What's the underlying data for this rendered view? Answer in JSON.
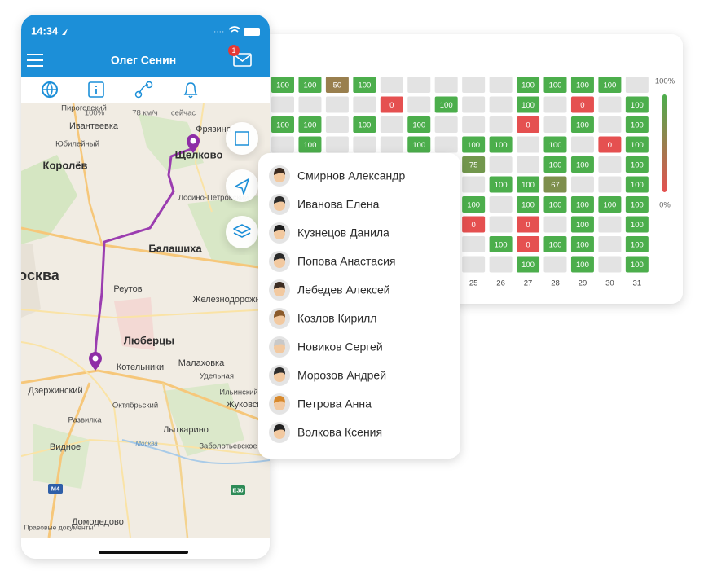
{
  "status_bar": {
    "time": "14:34"
  },
  "header": {
    "title": "Олег Сенин",
    "badge": "1"
  },
  "map": {
    "info": {
      "battery": "100%",
      "speed": "78 км/ч",
      "time": "сейчас"
    },
    "labels": [
      "Пироговский",
      "Ивантеевка",
      "Фрязино",
      "Юбилейный",
      "Королёв",
      "Щелково",
      "Лосино-Петровский",
      "Балашиха",
      "Москва",
      "Реутов",
      "Железнодорожный",
      "Люберцы",
      "Малаховка",
      "Котельники",
      "Удельная",
      "Дзержинский",
      "Ильинский",
      "Жуковский",
      "Октябрьский",
      "Развилка",
      "Лыткарино",
      "Заболотьевское",
      "Москва",
      "Видное",
      "Домодедово"
    ],
    "road_signs": [
      "M4",
      "E30"
    ],
    "legal": "Правовые документы"
  },
  "heatmap": {
    "columns": [
      null,
      null,
      null,
      null,
      null,
      null,
      null,
      25,
      26,
      27,
      28,
      29,
      30,
      31
    ],
    "rows": [
      [
        100,
        100,
        50,
        100,
        null,
        null,
        null,
        null,
        null,
        100,
        100,
        100,
        100,
        null
      ],
      [
        null,
        null,
        null,
        null,
        0,
        null,
        100,
        null,
        null,
        100,
        null,
        0,
        null,
        100
      ],
      [
        100,
        100,
        null,
        100,
        null,
        100,
        null,
        null,
        null,
        0,
        null,
        100,
        null,
        100
      ],
      [
        null,
        100,
        null,
        null,
        null,
        100,
        null,
        100,
        100,
        null,
        100,
        null,
        0,
        100
      ],
      [
        null,
        null,
        null,
        null,
        null,
        null,
        null,
        75,
        null,
        null,
        100,
        100,
        null,
        100
      ],
      [
        null,
        null,
        null,
        null,
        null,
        null,
        null,
        null,
        100,
        100,
        67,
        null,
        null,
        100
      ],
      [
        null,
        null,
        null,
        null,
        null,
        null,
        null,
        100,
        null,
        100,
        100,
        100,
        100,
        100
      ],
      [
        null,
        null,
        null,
        null,
        null,
        null,
        null,
        0,
        null,
        0,
        null,
        100,
        null,
        100
      ],
      [
        null,
        null,
        null,
        null,
        null,
        null,
        null,
        null,
        100,
        0,
        100,
        100,
        null,
        100
      ],
      [
        null,
        null,
        null,
        null,
        null,
        null,
        null,
        null,
        null,
        100,
        null,
        100,
        null,
        100
      ]
    ],
    "color_high": "#4cae4c",
    "color_low": "#e55050",
    "legend_max": "100%",
    "legend_min": "0%"
  },
  "people": [
    "Смирнов Александр",
    "Иванова Елена",
    "Кузнецов Данила",
    "Попова Анастасия",
    "Лебедев Алексей",
    "Козлов Кирилл",
    "Новиков Сергей",
    "Морозов Андрей",
    "Петрова Анна",
    "Волкова Ксения"
  ]
}
